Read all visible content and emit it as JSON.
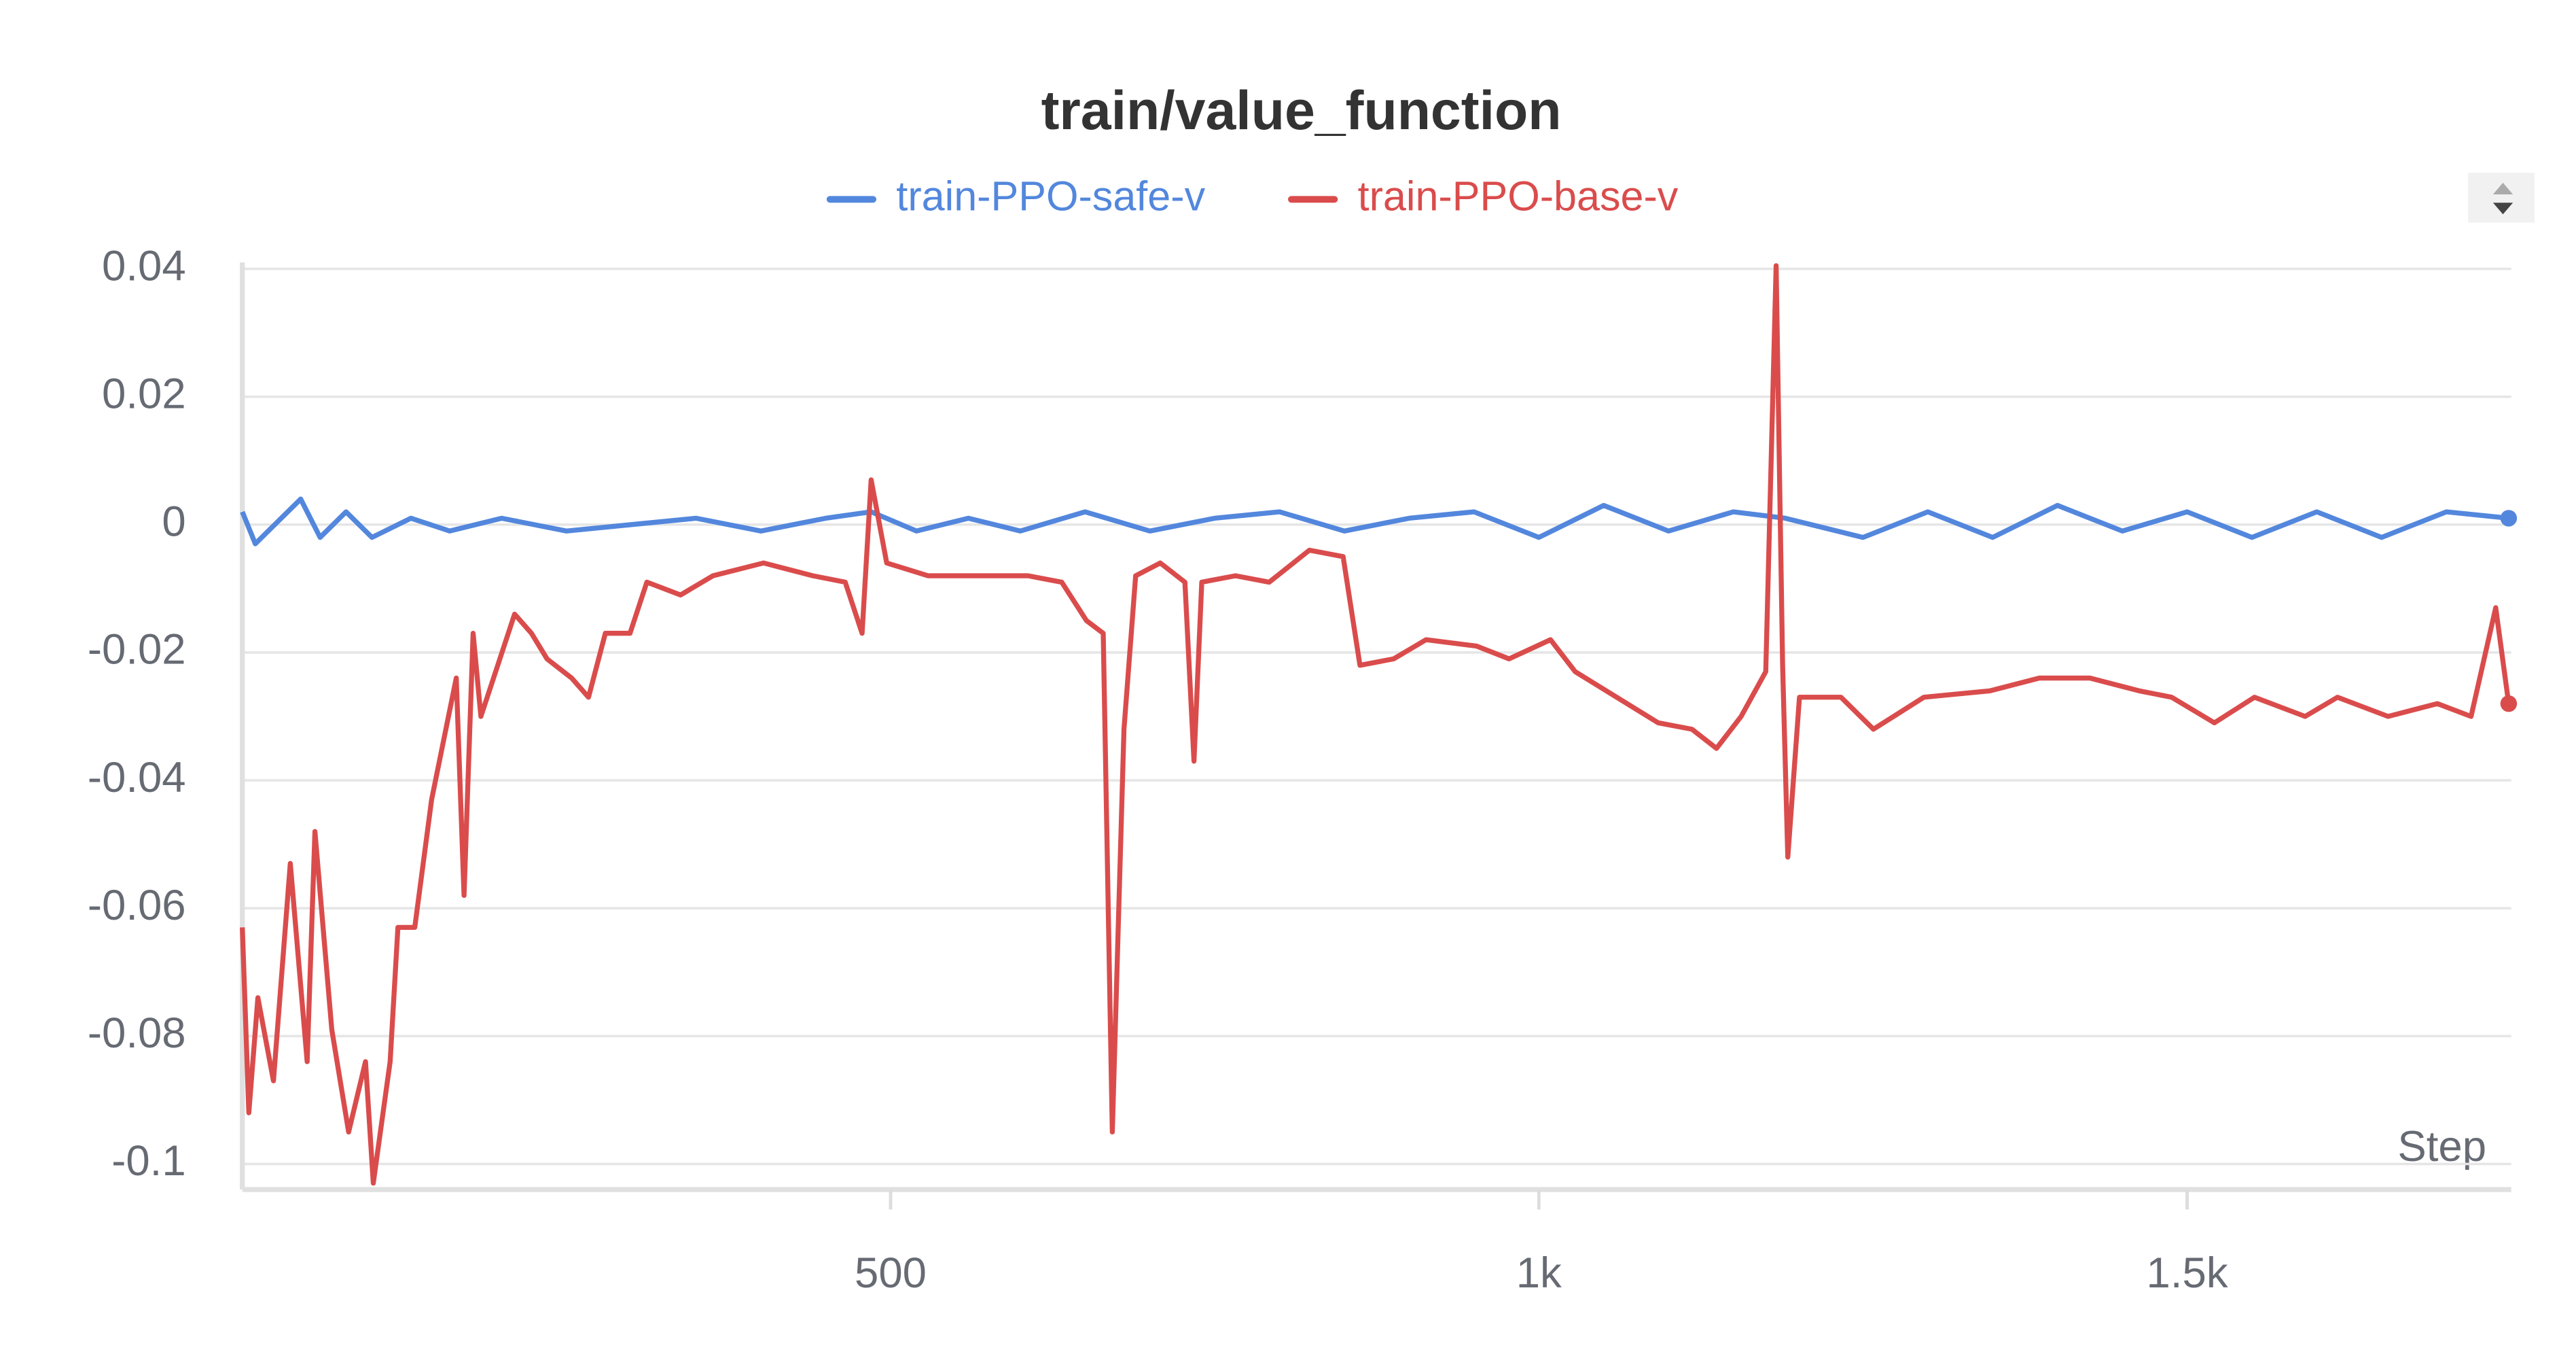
{
  "chart_data": {
    "type": "line",
    "title": "train/value_function",
    "xlabel": "Step",
    "xlim": [
      0,
      1750
    ],
    "xticks": [
      500,
      {
        "value": 1000,
        "label": "1k"
      },
      {
        "value": 1500,
        "label": "1.5k"
      }
    ],
    "ylim": [
      -0.104,
      0.041
    ],
    "yticks": [
      0.04,
      0.02,
      0,
      -0.02,
      -0.04,
      -0.06,
      -0.08,
      -0.1
    ],
    "grid": true,
    "legend": "top",
    "series": [
      {
        "name": "train-PPO-safe-v",
        "color": "#5387dd",
        "x": [
          0,
          10,
          30,
          45,
          60,
          80,
          100,
          130,
          160,
          200,
          250,
          300,
          350,
          400,
          450,
          485,
          520,
          560,
          600,
          650,
          700,
          750,
          800,
          850,
          900,
          950,
          1000,
          1050,
          1100,
          1150,
          1190,
          1250,
          1300,
          1350,
          1400,
          1450,
          1500,
          1550,
          1600,
          1650,
          1700,
          1748
        ],
        "values": [
          0.002,
          -0.003,
          0.001,
          0.004,
          -0.002,
          0.002,
          -0.002,
          0.001,
          -0.001,
          0.001,
          -0.001,
          0,
          0.001,
          -0.001,
          0.001,
          0.002,
          -0.001,
          0.001,
          -0.001,
          0.002,
          -0.001,
          0.001,
          0.002,
          -0.001,
          0.001,
          0.002,
          -0.002,
          0.003,
          -0.001,
          0.002,
          0.001,
          -0.002,
          0.002,
          -0.002,
          0.003,
          -0.001,
          0.002,
          -0.002,
          0.002,
          -0.002,
          0.002,
          0.001
        ]
      },
      {
        "name": "train-PPO-base-v",
        "color": "#da4c4c",
        "x": [
          0,
          5,
          12,
          24,
          37,
          50,
          56,
          69,
          82,
          95,
          101,
          114,
          120,
          133,
          146,
          159,
          165,
          171,
          178,
          184,
          197,
          210,
          223,
          235,
          254,
          267,
          280,
          299,
          312,
          338,
          363,
          402,
          440,
          465,
          478,
          485,
          497,
          529,
          555,
          580,
          606,
          632,
          651,
          664,
          671,
          680,
          689,
          708,
          727,
          734,
          740,
          766,
          792,
          823,
          849,
          862,
          888,
          913,
          952,
          977,
          1009,
          1028,
          1060,
          1092,
          1118,
          1137,
          1156,
          1175,
          1183,
          1188,
          1192,
          1201,
          1233,
          1258,
          1297,
          1348,
          1386,
          1425,
          1463,
          1488,
          1521,
          1552,
          1591,
          1616,
          1655,
          1693,
          1719,
          1738,
          1748
        ],
        "values": [
          -0.063,
          -0.092,
          -0.074,
          -0.087,
          -0.053,
          -0.084,
          -0.048,
          -0.079,
          -0.095,
          -0.084,
          -0.103,
          -0.084,
          -0.063,
          -0.063,
          -0.043,
          -0.03,
          -0.024,
          -0.058,
          -0.017,
          -0.03,
          -0.022,
          -0.014,
          -0.017,
          -0.021,
          -0.024,
          -0.027,
          -0.017,
          -0.017,
          -0.009,
          -0.011,
          -0.008,
          -0.006,
          -0.008,
          -0.009,
          -0.017,
          0.007,
          -0.006,
          -0.008,
          -0.008,
          -0.008,
          -0.008,
          -0.009,
          -0.015,
          -0.017,
          -0.095,
          -0.032,
          -0.008,
          -0.006,
          -0.009,
          -0.037,
          -0.009,
          -0.008,
          -0.009,
          -0.004,
          -0.005,
          -0.022,
          -0.021,
          -0.018,
          -0.019,
          -0.021,
          -0.018,
          -0.023,
          -0.027,
          -0.031,
          -0.032,
          -0.035,
          -0.03,
          -0.023,
          0.0405,
          -0.022,
          -0.052,
          -0.027,
          -0.027,
          -0.032,
          -0.027,
          -0.026,
          -0.024,
          -0.024,
          -0.026,
          -0.027,
          -0.031,
          -0.027,
          -0.03,
          -0.027,
          -0.03,
          -0.028,
          -0.03,
          -0.013,
          -0.028
        ]
      }
    ]
  }
}
